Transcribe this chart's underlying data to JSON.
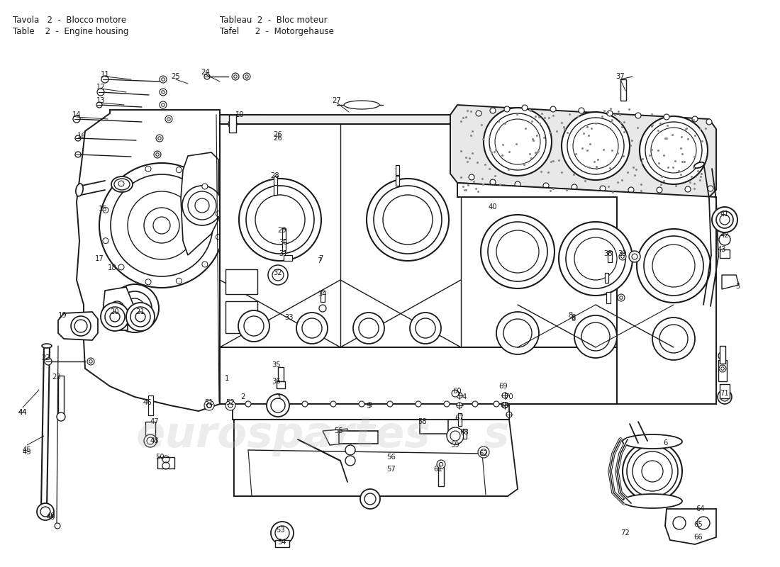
{
  "title_line1_left": "Tavola   2  -  Blocco motore",
  "title_line2_left": "Table    2  -  Engine housing",
  "title_line1_right": "Tableau  2  -  Bloc moteur",
  "title_line2_right": "Tafel      2  -  Motorgehause",
  "bg": "#ffffff",
  "lc": "#1a1a1a",
  "wm_color": "#cccccc",
  "wm_alpha": 0.28
}
